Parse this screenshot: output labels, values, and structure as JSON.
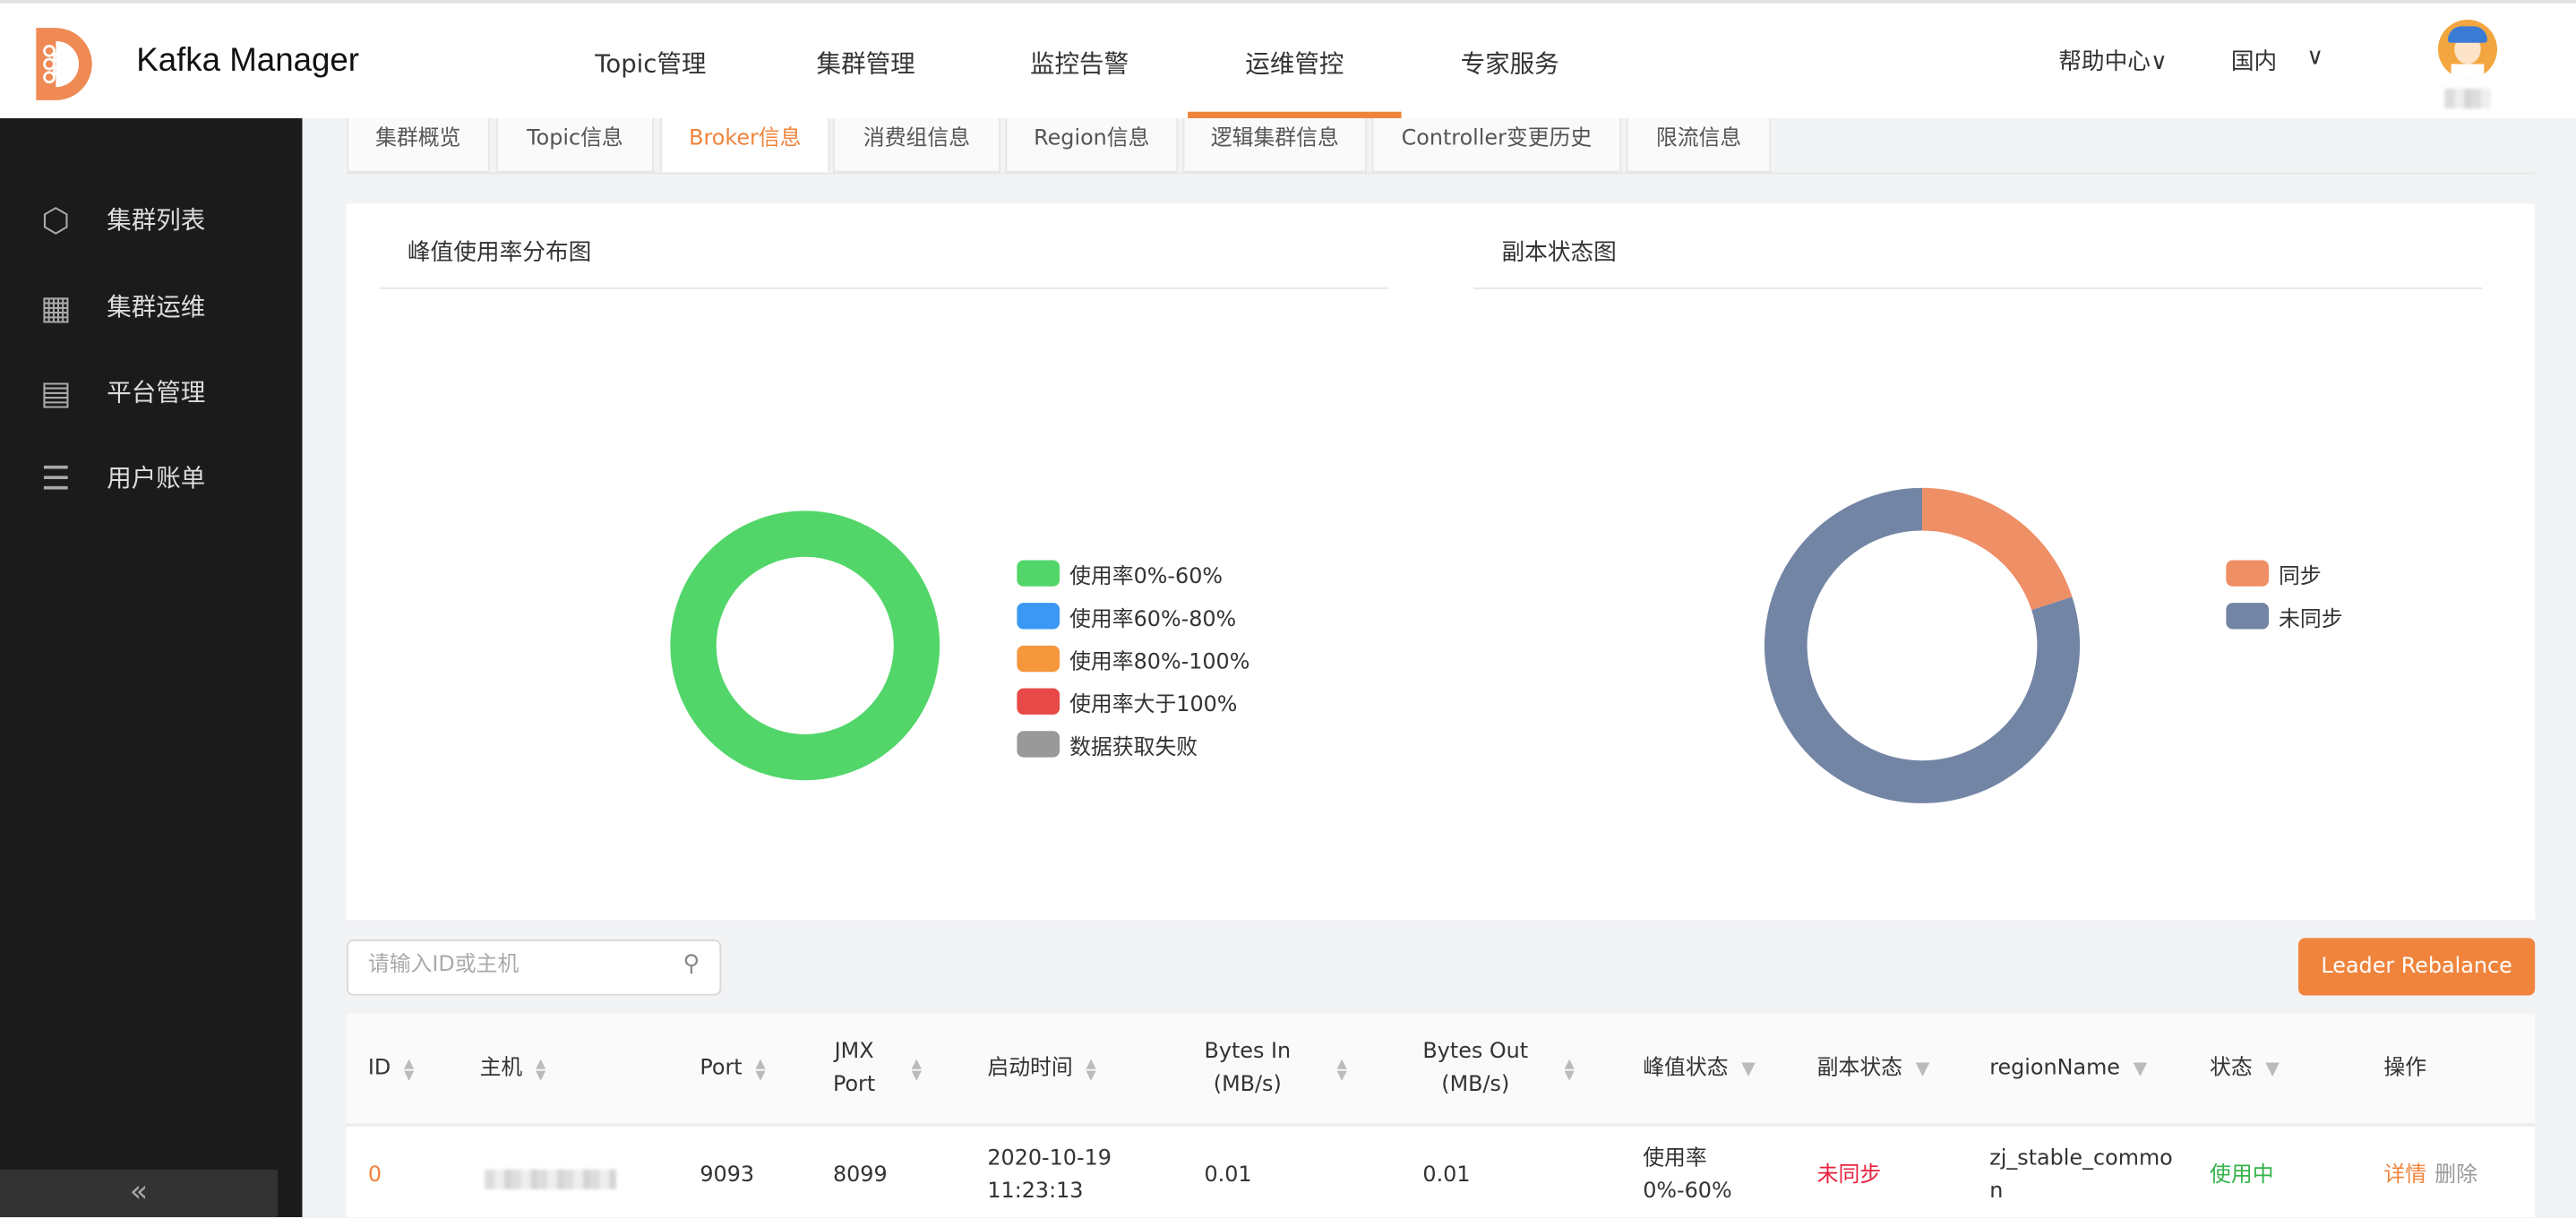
{
  "header": {
    "app_title": "Kafka Manager",
    "nav": [
      {
        "label": "Topic管理"
      },
      {
        "label": "集群管理"
      },
      {
        "label": "监控告警"
      },
      {
        "label": "运维管控",
        "active": true
      },
      {
        "label": "专家服务"
      }
    ],
    "help_label": "帮助中心∨",
    "region_label": "国内",
    "region_chevron": "∨",
    "accent": "#f0843c"
  },
  "sidebar": {
    "items": [
      {
        "label": "集群列表",
        "icon": "cluster-list-icon"
      },
      {
        "label": "集群运维",
        "icon": "cluster-ops-icon"
      },
      {
        "label": "平台管理",
        "icon": "clipboard-icon"
      },
      {
        "label": "用户账单",
        "icon": "list-icon"
      }
    ],
    "collapse_label": "«"
  },
  "tabs": [
    {
      "label": "集群概览"
    },
    {
      "label": "Topic信息"
    },
    {
      "label": "Broker信息",
      "active": true
    },
    {
      "label": "消费组信息"
    },
    {
      "label": "Region信息"
    },
    {
      "label": "逻辑集群信息"
    },
    {
      "label": "Controller变更历史"
    },
    {
      "label": "限流信息"
    }
  ],
  "chart_data": [
    {
      "type": "pie",
      "title": "峰值使用率分布图",
      "donut": true,
      "legend_position": "right",
      "series": [
        {
          "name": "使用率0%-60%",
          "value": 1,
          "color": "#52d669"
        },
        {
          "name": "使用率60%-80%",
          "value": 0,
          "color": "#3b99f5"
        },
        {
          "name": "使用率80%-100%",
          "value": 0,
          "color": "#f5973d"
        },
        {
          "name": "使用率大于100%",
          "value": 0,
          "color": "#e84848"
        },
        {
          "name": "数据获取失败",
          "value": 0,
          "color": "#999999"
        }
      ]
    },
    {
      "type": "pie",
      "title": "副本状态图",
      "donut": true,
      "legend_position": "right",
      "series": [
        {
          "name": "同步",
          "value": 20,
          "color": "#ef8f66"
        },
        {
          "name": "未同步",
          "value": 80,
          "color": "#7385a5"
        }
      ]
    }
  ],
  "search": {
    "placeholder": "请输入ID或主机",
    "value": ""
  },
  "rebalance_label": "Leader Rebalance",
  "table": {
    "columns": [
      "ID",
      "主机",
      "Port",
      "JMX Port",
      "启动时间",
      "Bytes In (MB/s)",
      "Bytes Out (MB/s)",
      "峰值状态",
      "副本状态",
      "regionName",
      "状态",
      "操作"
    ],
    "col_lines": {
      "jmx": [
        "JMX",
        "Port"
      ],
      "bytes_in": [
        "Bytes In",
        "(MB/s)"
      ],
      "bytes_out": [
        "Bytes Out",
        "(MB/s)"
      ]
    },
    "rows": [
      {
        "id": "0",
        "port": "9093",
        "jmx_port": "8099",
        "start_date": "2020-10-19",
        "start_time": "11:23:13",
        "bytes_in": "0.01",
        "bytes_out": "0.01",
        "peak_1": "使用率",
        "peak_2": "0%-60%",
        "replica": "未同步",
        "region_1": "zj_stable_commo",
        "region_2": "n",
        "status": "使用中",
        "actions": [
          "详情",
          "删除"
        ]
      }
    ]
  }
}
